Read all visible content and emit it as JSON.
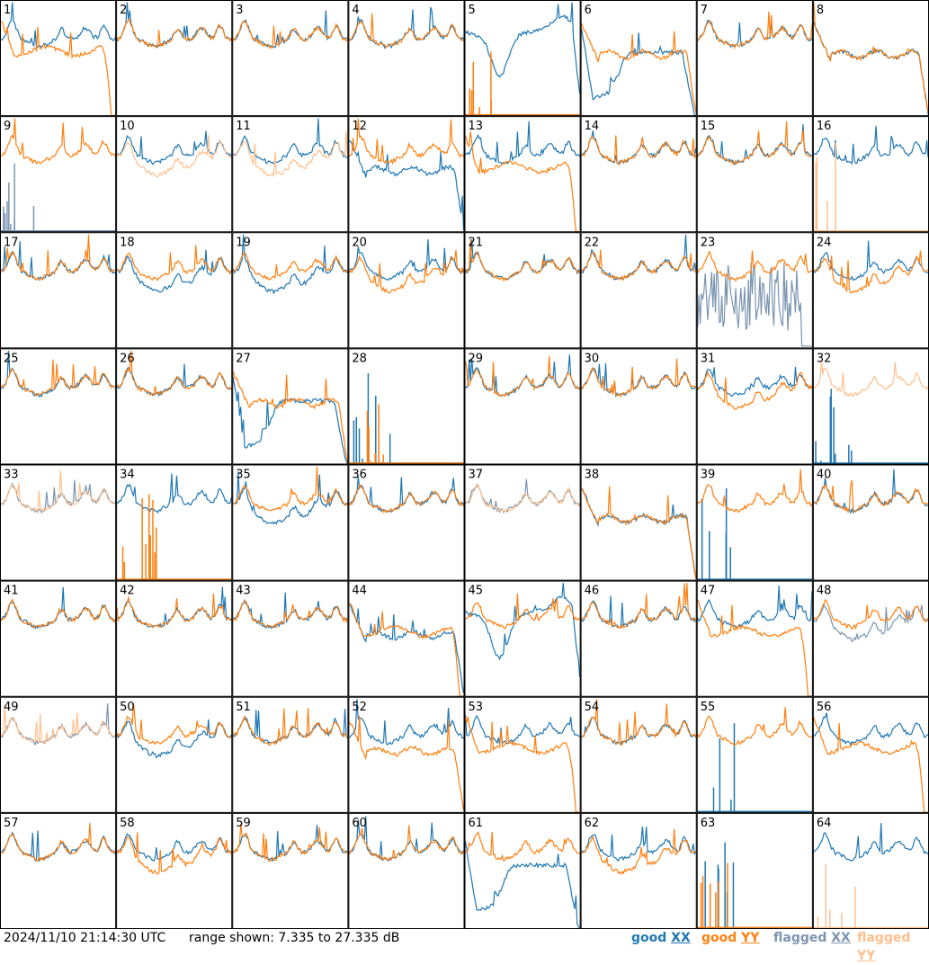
{
  "timestamp": "2024/11/10 21:14:30 UTC",
  "range_label": "range shown: 7.335 to 27.335 dB",
  "legend": [
    {
      "prefix": "good ",
      "key": "XX",
      "color": "#1f77b4"
    },
    {
      "prefix": "good ",
      "key": "YY",
      "color": "#ff7f0e"
    },
    {
      "prefix": "flagged ",
      "key": "XX",
      "color": "#7b95b0"
    },
    {
      "prefix": "flagged ",
      "key": "YY",
      "color": "#ffc08e"
    }
  ],
  "chart_data": {
    "type": "line",
    "grid": "8x8",
    "y_range_db": [
      7.335,
      27.335
    ],
    "series_kinds": [
      "good XX",
      "good YY",
      "flagged XX",
      "flagged YY"
    ],
    "panels": [
      {
        "id": 1,
        "xx": "normal",
        "yy": "drop"
      },
      {
        "id": 2,
        "xx": "normal",
        "yy": "normal"
      },
      {
        "id": 3,
        "xx": "normal",
        "yy": "normal"
      },
      {
        "id": 4,
        "xx": "normal",
        "yy": "normal"
      },
      {
        "id": 5,
        "xx": "dip",
        "yy": "dead"
      },
      {
        "id": 6,
        "xx": "hump",
        "yy": "flat"
      },
      {
        "id": 7,
        "xx": "normal",
        "yy": "normal"
      },
      {
        "id": 8,
        "xx": "flat",
        "yy": "flat"
      },
      {
        "id": 9,
        "xx": "dead",
        "yy": "normal",
        "flagged": [
          "xx"
        ]
      },
      {
        "id": 10,
        "xx": "normal",
        "yy": "low",
        "flagged": [
          "yy"
        ]
      },
      {
        "id": 11,
        "xx": "normal",
        "yy": "low",
        "flagged": [
          "yy"
        ]
      },
      {
        "id": 12,
        "xx": "flat",
        "yy": "normal"
      },
      {
        "id": 13,
        "xx": "normal",
        "yy": "drop"
      },
      {
        "id": 14,
        "xx": "normal",
        "yy": "normal"
      },
      {
        "id": 15,
        "xx": "normal",
        "yy": "normal"
      },
      {
        "id": 16,
        "xx": "normal",
        "yy": "dead",
        "flagged": [
          "yy"
        ]
      },
      {
        "id": 17,
        "xx": "normal",
        "yy": "normal"
      },
      {
        "id": 18,
        "xx": "low",
        "yy": "normal"
      },
      {
        "id": 19,
        "xx": "low",
        "yy": "normal"
      },
      {
        "id": 20,
        "xx": "normal",
        "yy": "low"
      },
      {
        "id": 21,
        "xx": "normal",
        "yy": "normal"
      },
      {
        "id": 22,
        "xx": "normal",
        "yy": "normal"
      },
      {
        "id": 23,
        "xx": "noisy",
        "yy": "normal",
        "flagged": [
          "xx"
        ]
      },
      {
        "id": 24,
        "xx": "normal",
        "yy": "low"
      },
      {
        "id": 25,
        "xx": "normal",
        "yy": "normal"
      },
      {
        "id": 26,
        "xx": "normal",
        "yy": "normal"
      },
      {
        "id": 27,
        "xx": "hump",
        "yy": "flat"
      },
      {
        "id": 28,
        "xx": "dead",
        "yy": "dead"
      },
      {
        "id": 29,
        "xx": "normal",
        "yy": "normal"
      },
      {
        "id": 30,
        "xx": "normal",
        "yy": "normal"
      },
      {
        "id": 31,
        "xx": "normal",
        "yy": "low"
      },
      {
        "id": 32,
        "xx": "dead",
        "yy": "normal",
        "flagged": [
          "yy"
        ]
      },
      {
        "id": 33,
        "xx": "normal",
        "yy": "normal",
        "flagged": [
          "xx",
          "yy"
        ]
      },
      {
        "id": 34,
        "xx": "normal",
        "yy": "dead"
      },
      {
        "id": 35,
        "xx": "low",
        "yy": "normal"
      },
      {
        "id": 36,
        "xx": "normal",
        "yy": "normal"
      },
      {
        "id": 37,
        "xx": "normal",
        "yy": "normal",
        "flagged": [
          "xx",
          "yy"
        ]
      },
      {
        "id": 38,
        "xx": "flat",
        "yy": "flat"
      },
      {
        "id": 39,
        "xx": "dead",
        "yy": "normal"
      },
      {
        "id": 40,
        "xx": "normal",
        "yy": "normal"
      },
      {
        "id": 41,
        "xx": "normal",
        "yy": "normal"
      },
      {
        "id": 42,
        "xx": "normal",
        "yy": "normal"
      },
      {
        "id": 43,
        "xx": "normal",
        "yy": "normal"
      },
      {
        "id": 44,
        "xx": "flat",
        "yy": "drop"
      },
      {
        "id": 45,
        "xx": "dip",
        "yy": "normal"
      },
      {
        "id": 46,
        "xx": "normal",
        "yy": "normal"
      },
      {
        "id": 47,
        "xx": "normal",
        "yy": "drop"
      },
      {
        "id": 48,
        "xx": "low",
        "yy": "normal",
        "flagged": [
          "xx"
        ]
      },
      {
        "id": 49,
        "xx": "normal",
        "yy": "normal",
        "flagged": [
          "xx",
          "yy"
        ]
      },
      {
        "id": 50,
        "xx": "low",
        "yy": "normal"
      },
      {
        "id": 51,
        "xx": "normal",
        "yy": "normal"
      },
      {
        "id": 52,
        "xx": "normal",
        "yy": "flat"
      },
      {
        "id": 53,
        "xx": "normal",
        "yy": "drop"
      },
      {
        "id": 54,
        "xx": "normal",
        "yy": "normal"
      },
      {
        "id": 55,
        "xx": "dead",
        "yy": "normal"
      },
      {
        "id": 56,
        "xx": "normal",
        "yy": "drop"
      },
      {
        "id": 57,
        "xx": "normal",
        "yy": "normal"
      },
      {
        "id": 58,
        "xx": "normal",
        "yy": "low"
      },
      {
        "id": 59,
        "xx": "normal",
        "yy": "normal"
      },
      {
        "id": 60,
        "xx": "normal",
        "yy": "normal"
      },
      {
        "id": 61,
        "xx": "hump",
        "yy": "normal"
      },
      {
        "id": 62,
        "xx": "normal",
        "yy": "low"
      },
      {
        "id": 63,
        "xx": "dead",
        "yy": "dead"
      },
      {
        "id": 64,
        "xx": "normal",
        "yy": "dead",
        "flagged": [
          "yy"
        ]
      }
    ]
  }
}
